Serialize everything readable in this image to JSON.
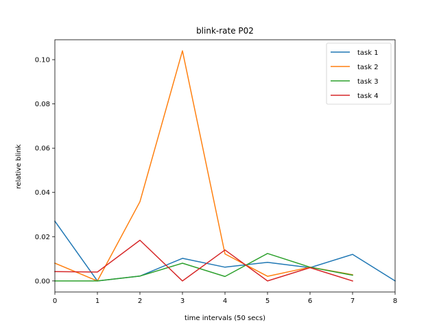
{
  "chart_data": {
    "type": "line",
    "title": "blink-rate P02",
    "xlabel": "time intervals (50 secs)",
    "ylabel": "relative blink",
    "xlim": [
      0,
      8
    ],
    "ylim": [
      -0.005,
      0.109
    ],
    "xticks": [
      0,
      1,
      2,
      3,
      4,
      5,
      6,
      7,
      8
    ],
    "yticks": [
      0.0,
      0.02,
      0.04,
      0.06,
      0.08,
      0.1
    ],
    "ytick_labels": [
      "0.00",
      "0.02",
      "0.04",
      "0.06",
      "0.08",
      "0.10"
    ],
    "grid": false,
    "legend_position": "top-right",
    "series": [
      {
        "name": "task 1",
        "color": "#1f77b4",
        "x": [
          0,
          1,
          2,
          3,
          4,
          5,
          6,
          7,
          8
        ],
        "values": [
          0.027,
          0.0,
          0.0022,
          0.0102,
          0.0062,
          0.0084,
          0.006,
          0.012,
          0.0
        ]
      },
      {
        "name": "task 2",
        "color": "#ff7f0e",
        "x": [
          0,
          1,
          2,
          3,
          4,
          5,
          6,
          7
        ],
        "values": [
          0.008,
          0.0,
          0.0358,
          0.104,
          0.0122,
          0.0021,
          0.0062,
          0.0028
        ]
      },
      {
        "name": "task 3",
        "color": "#2ca02c",
        "x": [
          0,
          1,
          2,
          3,
          4,
          5,
          6,
          7
        ],
        "values": [
          0.0,
          0.0,
          0.0022,
          0.008,
          0.002,
          0.0124,
          0.0062,
          0.0026
        ]
      },
      {
        "name": "task 4",
        "color": "#d62728",
        "x": [
          0,
          1,
          2,
          3,
          4,
          5,
          6,
          7
        ],
        "values": [
          0.0042,
          0.004,
          0.0184,
          0.0,
          0.014,
          0.0,
          0.006,
          0.0
        ]
      }
    ]
  }
}
